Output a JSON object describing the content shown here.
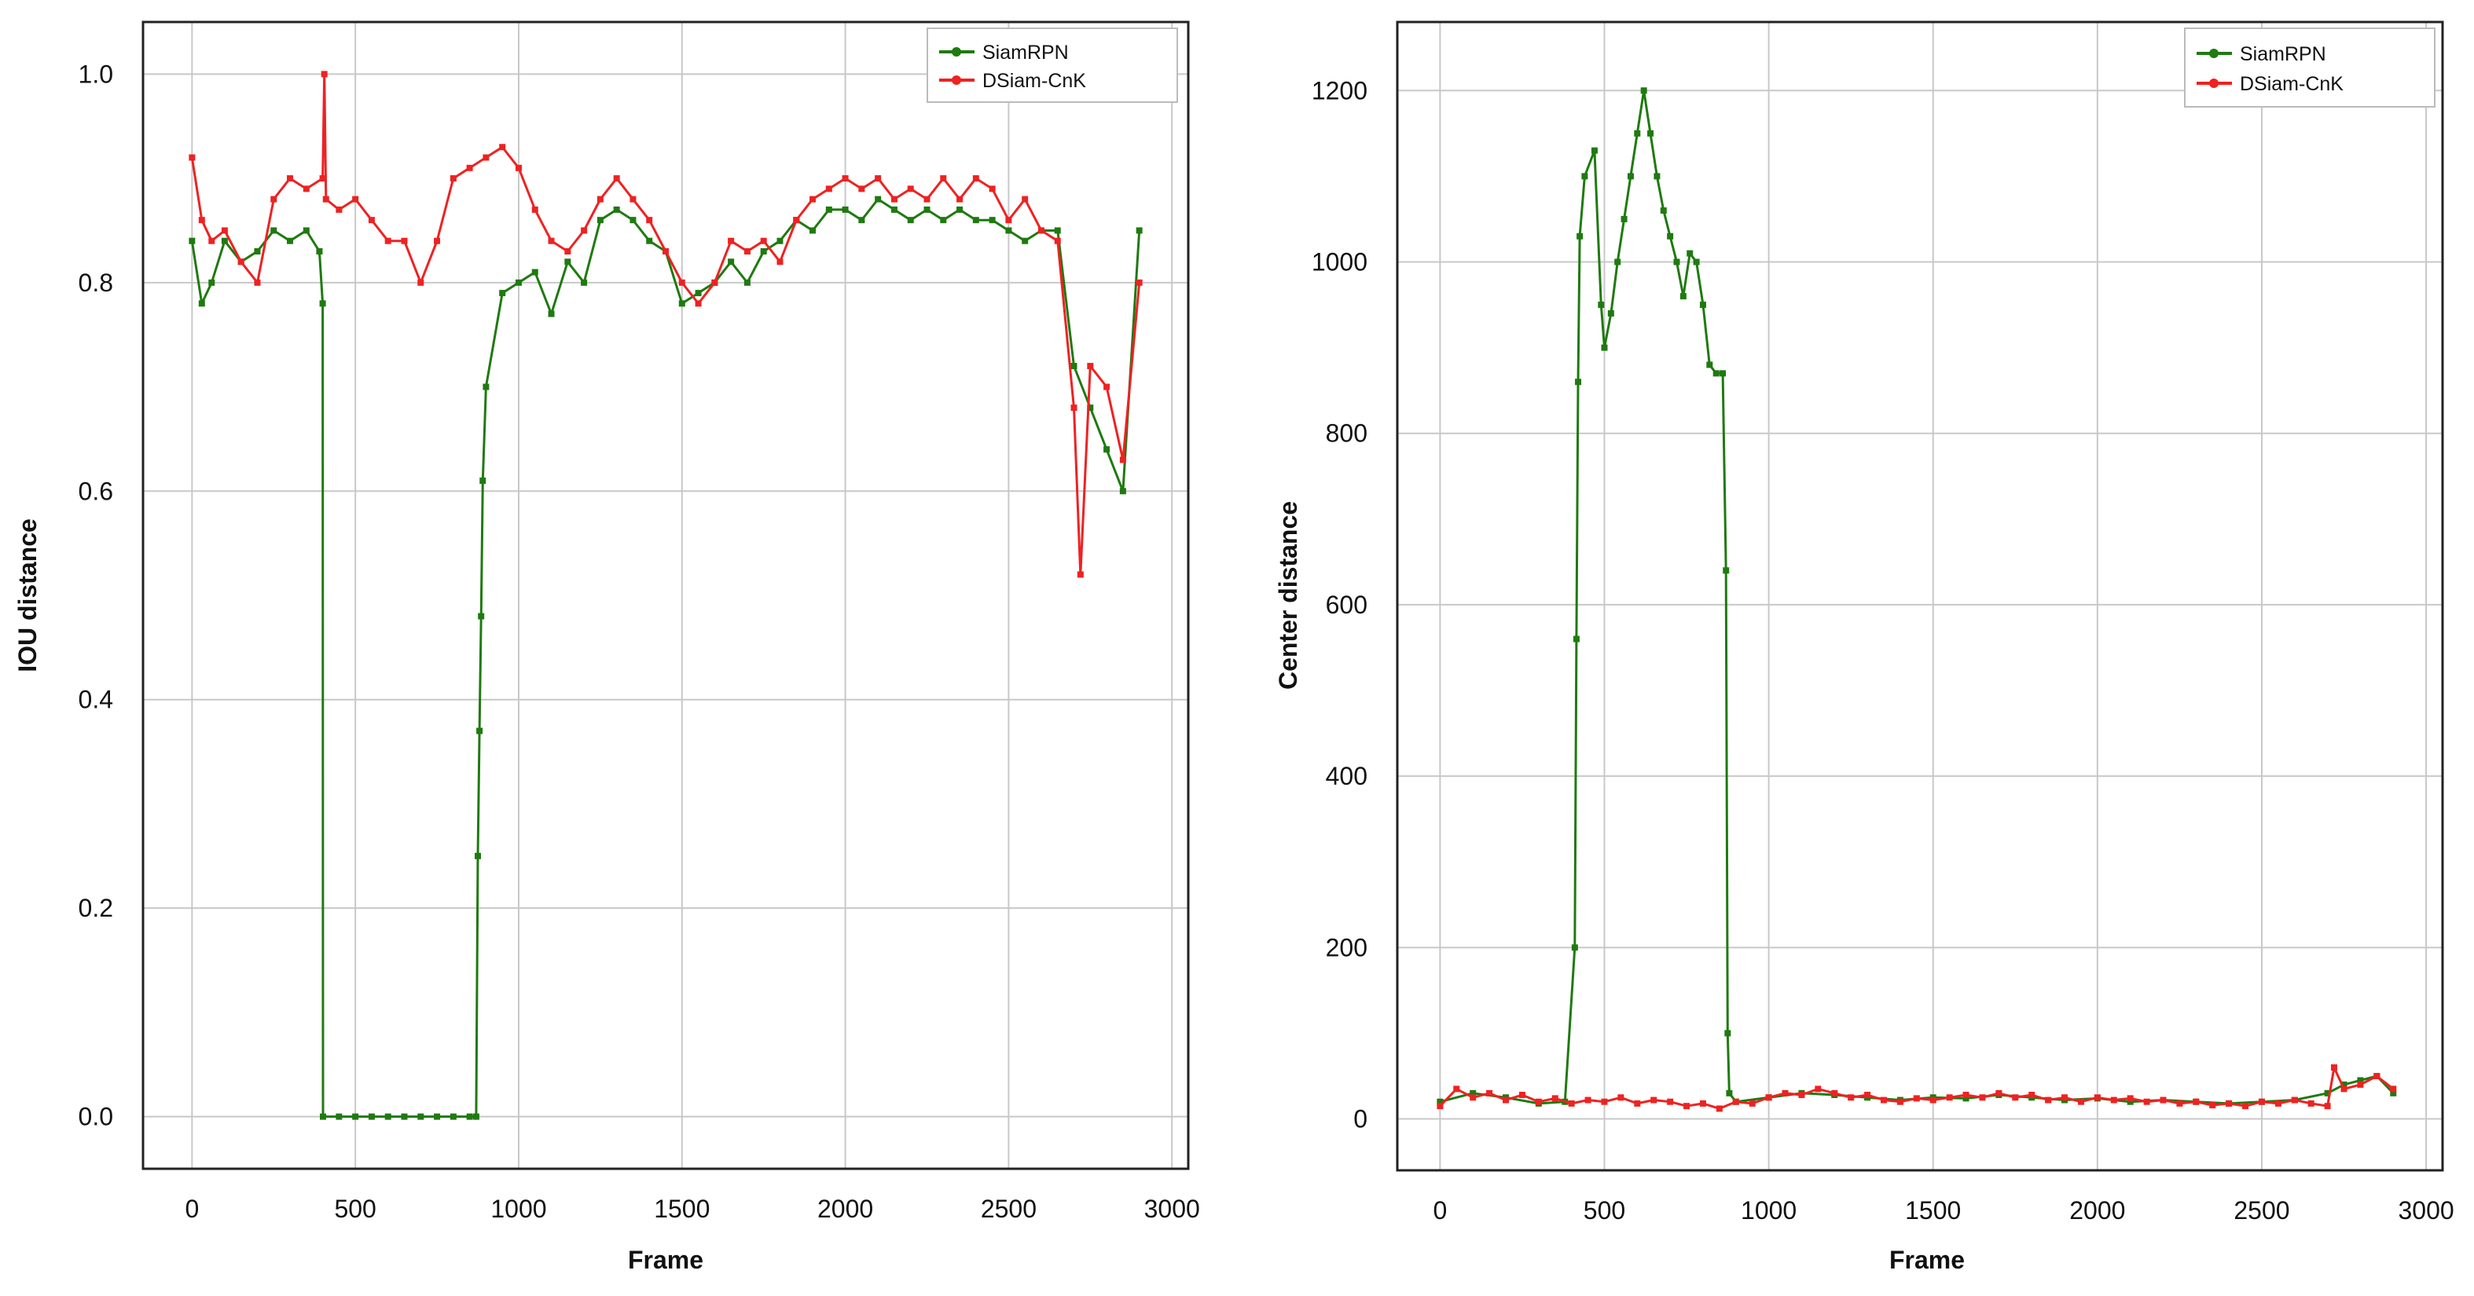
{
  "colors": {
    "siamrpn": "#1f7a10",
    "dsiam": "#ee2222",
    "grid": "#c8c8c8",
    "frame": "#222222"
  },
  "chart_data": [
    {
      "type": "line",
      "xlabel": "Frame",
      "ylabel": "IOU distance",
      "xlim": [
        -150,
        3050
      ],
      "ylim": [
        -0.05,
        1.05
      ],
      "xticks": [
        0,
        500,
        1000,
        1500,
        2000,
        2500,
        3000
      ],
      "yticks": [
        0.0,
        0.2,
        0.4,
        0.6,
        0.8,
        1.0
      ],
      "xtick_labels": [
        "0",
        "500",
        "1000",
        "1500",
        "2000",
        "2500",
        "3000"
      ],
      "ytick_labels": [
        "0.0",
        "0.2",
        "0.4",
        "0.6",
        "0.8",
        "1.0"
      ],
      "grid": true,
      "legend_position": "top-right",
      "series": [
        {
          "name": "SiamRPN",
          "x": [
            0,
            30,
            60,
            100,
            150,
            200,
            250,
            300,
            350,
            390,
            400,
            401,
            450,
            500,
            550,
            600,
            650,
            700,
            750,
            800,
            850,
            870,
            875,
            880,
            885,
            890,
            900,
            950,
            1000,
            1050,
            1100,
            1150,
            1200,
            1250,
            1300,
            1350,
            1400,
            1450,
            1500,
            1550,
            1600,
            1650,
            1700,
            1750,
            1800,
            1850,
            1900,
            1950,
            2000,
            2050,
            2100,
            2150,
            2200,
            2250,
            2300,
            2350,
            2400,
            2450,
            2500,
            2550,
            2600,
            2650,
            2700,
            2750,
            2800,
            2850,
            2900
          ],
          "y": [
            0.84,
            0.78,
            0.8,
            0.84,
            0.82,
            0.83,
            0.85,
            0.84,
            0.85,
            0.83,
            0.78,
            0.0,
            0.0,
            0.0,
            0.0,
            0.0,
            0.0,
            0.0,
            0.0,
            0.0,
            0.0,
            0.0,
            0.25,
            0.37,
            0.48,
            0.61,
            0.7,
            0.79,
            0.8,
            0.81,
            0.77,
            0.82,
            0.8,
            0.86,
            0.87,
            0.86,
            0.84,
            0.83,
            0.78,
            0.79,
            0.8,
            0.82,
            0.8,
            0.83,
            0.84,
            0.86,
            0.85,
            0.87,
            0.87,
            0.86,
            0.88,
            0.87,
            0.86,
            0.87,
            0.86,
            0.87,
            0.86,
            0.86,
            0.85,
            0.84,
            0.85,
            0.85,
            0.72,
            0.68,
            0.64,
            0.6,
            0.85
          ]
        },
        {
          "name": "DSiam-CnK",
          "x": [
            0,
            30,
            60,
            100,
            150,
            200,
            250,
            300,
            350,
            400,
            405,
            410,
            450,
            500,
            550,
            600,
            650,
            700,
            750,
            800,
            850,
            900,
            950,
            1000,
            1050,
            1100,
            1150,
            1200,
            1250,
            1300,
            1350,
            1400,
            1450,
            1500,
            1550,
            1600,
            1650,
            1700,
            1750,
            1800,
            1850,
            1900,
            1950,
            2000,
            2050,
            2100,
            2150,
            2200,
            2250,
            2300,
            2350,
            2400,
            2450,
            2500,
            2550,
            2600,
            2650,
            2700,
            2720,
            2750,
            2800,
            2850,
            2900
          ],
          "y": [
            0.92,
            0.86,
            0.84,
            0.85,
            0.82,
            0.8,
            0.88,
            0.9,
            0.89,
            0.9,
            1.0,
            0.88,
            0.87,
            0.88,
            0.86,
            0.84,
            0.84,
            0.8,
            0.84,
            0.9,
            0.91,
            0.92,
            0.93,
            0.91,
            0.87,
            0.84,
            0.83,
            0.85,
            0.88,
            0.9,
            0.88,
            0.86,
            0.83,
            0.8,
            0.78,
            0.8,
            0.84,
            0.83,
            0.84,
            0.82,
            0.86,
            0.88,
            0.89,
            0.9,
            0.89,
            0.9,
            0.88,
            0.89,
            0.88,
            0.9,
            0.88,
            0.9,
            0.89,
            0.86,
            0.88,
            0.85,
            0.84,
            0.68,
            0.52,
            0.72,
            0.7,
            0.63,
            0.8
          ]
        }
      ]
    },
    {
      "type": "line",
      "xlabel": "Frame",
      "ylabel": "Center distance",
      "xlim": [
        -130,
        3050
      ],
      "ylim": [
        -60,
        1280
      ],
      "xticks": [
        0,
        500,
        1000,
        1500,
        2000,
        2500,
        3000
      ],
      "yticks": [
        0,
        200,
        400,
        600,
        800,
        1000,
        1200
      ],
      "xtick_labels": [
        "0",
        "500",
        "1000",
        "1500",
        "2000",
        "2500",
        "3000"
      ],
      "ytick_labels": [
        "0",
        "200",
        "400",
        "600",
        "800",
        "1000",
        "1200"
      ],
      "grid": true,
      "legend_position": "top-right",
      "series": [
        {
          "name": "SiamRPN",
          "x": [
            0,
            100,
            200,
            300,
            380,
            410,
            415,
            420,
            425,
            440,
            470,
            490,
            500,
            520,
            540,
            560,
            580,
            600,
            620,
            640,
            660,
            680,
            700,
            720,
            740,
            760,
            780,
            800,
            820,
            840,
            860,
            870,
            875,
            880,
            900,
            1000,
            1100,
            1200,
            1300,
            1400,
            1500,
            1600,
            1700,
            1800,
            1900,
            2000,
            2100,
            2200,
            2300,
            2400,
            2500,
            2600,
            2700,
            2750,
            2800,
            2850,
            2900
          ],
          "y": [
            20,
            30,
            25,
            18,
            20,
            200,
            560,
            860,
            1030,
            1100,
            1130,
            950,
            900,
            940,
            1000,
            1050,
            1100,
            1150,
            1200,
            1150,
            1100,
            1060,
            1030,
            1000,
            960,
            1010,
            1000,
            950,
            880,
            870,
            870,
            640,
            100,
            30,
            20,
            25,
            30,
            28,
            25,
            22,
            25,
            24,
            28,
            25,
            22,
            24,
            20,
            22,
            20,
            18,
            20,
            22,
            30,
            40,
            45,
            50,
            30
          ]
        },
        {
          "name": "DSiam-CnK",
          "x": [
            0,
            50,
            100,
            150,
            200,
            250,
            300,
            350,
            400,
            450,
            500,
            550,
            600,
            650,
            700,
            750,
            800,
            850,
            900,
            950,
            1000,
            1050,
            1100,
            1150,
            1200,
            1250,
            1300,
            1350,
            1400,
            1450,
            1500,
            1550,
            1600,
            1650,
            1700,
            1750,
            1800,
            1850,
            1900,
            1950,
            2000,
            2050,
            2100,
            2150,
            2200,
            2250,
            2300,
            2350,
            2400,
            2450,
            2500,
            2550,
            2600,
            2650,
            2700,
            2720,
            2750,
            2800,
            2850,
            2900
          ],
          "y": [
            15,
            35,
            25,
            30,
            22,
            28,
            20,
            24,
            18,
            22,
            20,
            25,
            18,
            22,
            20,
            15,
            18,
            12,
            20,
            18,
            25,
            30,
            28,
            35,
            30,
            25,
            28,
            22,
            20,
            24,
            22,
            25,
            28,
            25,
            30,
            25,
            28,
            22,
            25,
            20,
            25,
            22,
            24,
            20,
            22,
            18,
            20,
            16,
            18,
            15,
            20,
            18,
            22,
            18,
            15,
            60,
            35,
            40,
            50,
            35
          ]
        }
      ]
    }
  ]
}
